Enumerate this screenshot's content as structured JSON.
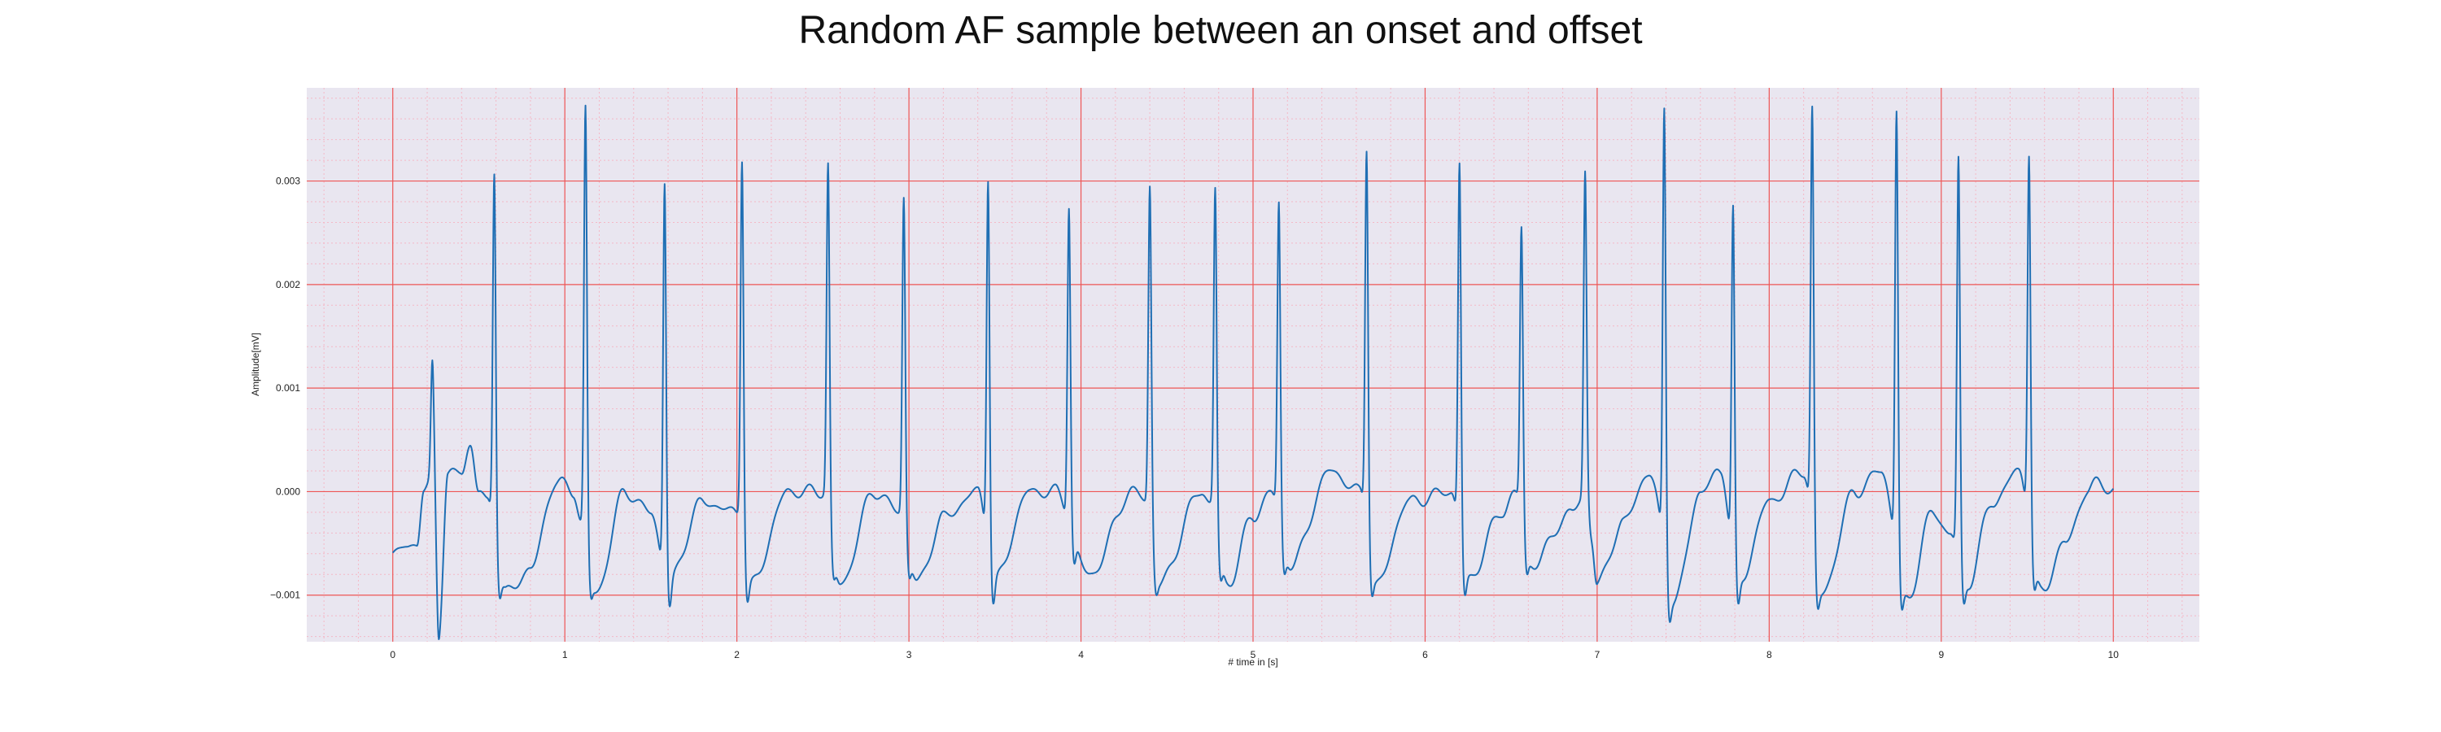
{
  "chart_data": {
    "type": "line",
    "title": "Random AF sample between an onset and offset",
    "xlabel": "# time in [s]",
    "ylabel": "Amplitude[mV]",
    "xlim": [
      -0.5,
      10.5
    ],
    "ylim": [
      -0.00145,
      0.0039
    ],
    "x_ticks": [
      0,
      1,
      2,
      3,
      4,
      5,
      6,
      7,
      8,
      9,
      10
    ],
    "y_ticks": [
      -0.001,
      0.0,
      0.001,
      0.002,
      0.003
    ],
    "x_tick_labels": [
      "0",
      "1",
      "2",
      "3",
      "4",
      "5",
      "6",
      "7",
      "8",
      "9",
      "10"
    ],
    "y_tick_labels": [
      "−0.001",
      "0.000",
      "0.001",
      "0.002",
      "0.003"
    ],
    "grid": true,
    "minor_grid": true,
    "series": [
      {
        "color": "#1f6fb4",
        "sample_rate_hz": 200,
        "baseline": [
          [
            0.0,
            -0.00062
          ],
          [
            0.08,
            -0.00052
          ],
          [
            0.14,
            -0.0005
          ],
          [
            0.18,
            0.0
          ],
          [
            0.24,
            0.0001
          ],
          [
            0.27,
            -0.0012
          ],
          [
            0.32,
            0.00015
          ],
          [
            0.4,
            0.0002
          ],
          [
            0.45,
            0.00045
          ],
          [
            0.5,
            0.0
          ],
          [
            0.55,
            -0.0001
          ],
          [
            0.66,
            -0.00098
          ],
          [
            0.8,
            -0.00075
          ],
          [
            0.95,
            0.0001
          ],
          [
            1.05,
            0.0
          ],
          [
            1.1,
            -0.0003
          ],
          [
            1.18,
            -0.00098
          ],
          [
            1.35,
            0.0
          ],
          [
            1.5,
            -0.0002
          ],
          [
            1.6,
            -0.00088
          ],
          [
            1.8,
            -0.0001
          ],
          [
            2.0,
            -0.0002
          ],
          [
            2.08,
            -0.0009
          ],
          [
            2.3,
            0.0
          ],
          [
            2.5,
            0.0
          ],
          [
            2.6,
            -0.0009
          ],
          [
            2.8,
            0.0
          ],
          [
            2.95,
            -0.0002
          ],
          [
            3.05,
            -0.00088
          ],
          [
            3.2,
            -0.00025
          ],
          [
            3.4,
            0.0
          ],
          [
            3.5,
            -0.00085
          ],
          [
            3.7,
            0.0
          ],
          [
            3.85,
            0.0
          ],
          [
            4.05,
            -0.0008
          ],
          [
            4.3,
            0.0
          ],
          [
            4.4,
            -0.0001
          ],
          [
            4.45,
            -0.0009
          ],
          [
            4.7,
            0.0
          ],
          [
            4.75,
            -0.0001
          ],
          [
            4.85,
            -0.0009
          ],
          [
            5.0,
            -0.00025
          ],
          [
            5.1,
            0.0
          ],
          [
            5.22,
            -0.0007
          ],
          [
            5.45,
            0.0002
          ],
          [
            5.62,
            0.0
          ],
          [
            5.72,
            -0.0009
          ],
          [
            5.9,
            -0.0001
          ],
          [
            6.15,
            0.0
          ],
          [
            6.25,
            -0.00085
          ],
          [
            6.45,
            -0.0002
          ],
          [
            6.52,
            0.0
          ],
          [
            6.62,
            -0.0007
          ],
          [
            6.85,
            -0.0002
          ],
          [
            6.95,
            0.0
          ],
          [
            7.0,
            -0.0009
          ],
          [
            7.15,
            -0.0003
          ],
          [
            7.3,
            0.00018
          ],
          [
            7.45,
            -0.00105
          ],
          [
            7.6,
            0.0
          ],
          [
            7.72,
            0.0002
          ],
          [
            7.82,
            -0.0009
          ],
          [
            8.0,
            -0.0001
          ],
          [
            8.2,
            0.0002
          ],
          [
            8.3,
            -0.001
          ],
          [
            8.5,
            0.0
          ],
          [
            8.65,
            0.0002
          ],
          [
            8.8,
            -0.00105
          ],
          [
            8.95,
            -0.0002
          ],
          [
            9.05,
            -0.0004
          ],
          [
            9.15,
            -0.0009
          ],
          [
            9.3,
            -0.0001
          ],
          [
            9.45,
            0.0002
          ],
          [
            9.58,
            -0.00097
          ],
          [
            9.72,
            -0.0005
          ],
          [
            9.85,
            0.0
          ],
          [
            9.92,
            0.0001
          ],
          [
            10.0,
            0.0
          ]
        ],
        "r_peaks": [
          [
            0.23,
            0.00123
          ],
          [
            0.59,
            0.00312
          ],
          [
            1.12,
            0.0037
          ],
          [
            1.58,
            0.003
          ],
          [
            2.03,
            0.00325
          ],
          [
            2.53,
            0.00316
          ],
          [
            2.97,
            0.00285
          ],
          [
            3.46,
            0.00306
          ],
          [
            3.93,
            0.00278
          ],
          [
            4.4,
            0.00296
          ],
          [
            4.78,
            0.00294
          ],
          [
            5.15,
            0.00277
          ],
          [
            5.66,
            0.00335
          ],
          [
            6.2,
            0.00318
          ],
          [
            6.56,
            0.00254
          ],
          [
            6.93,
            0.0031
          ],
          [
            7.39,
            0.00371
          ],
          [
            7.79,
            0.00273
          ],
          [
            8.25,
            0.0037
          ],
          [
            8.74,
            0.00369
          ],
          [
            9.1,
            0.0032
          ],
          [
            9.51,
            0.00329
          ]
        ]
      }
    ]
  }
}
